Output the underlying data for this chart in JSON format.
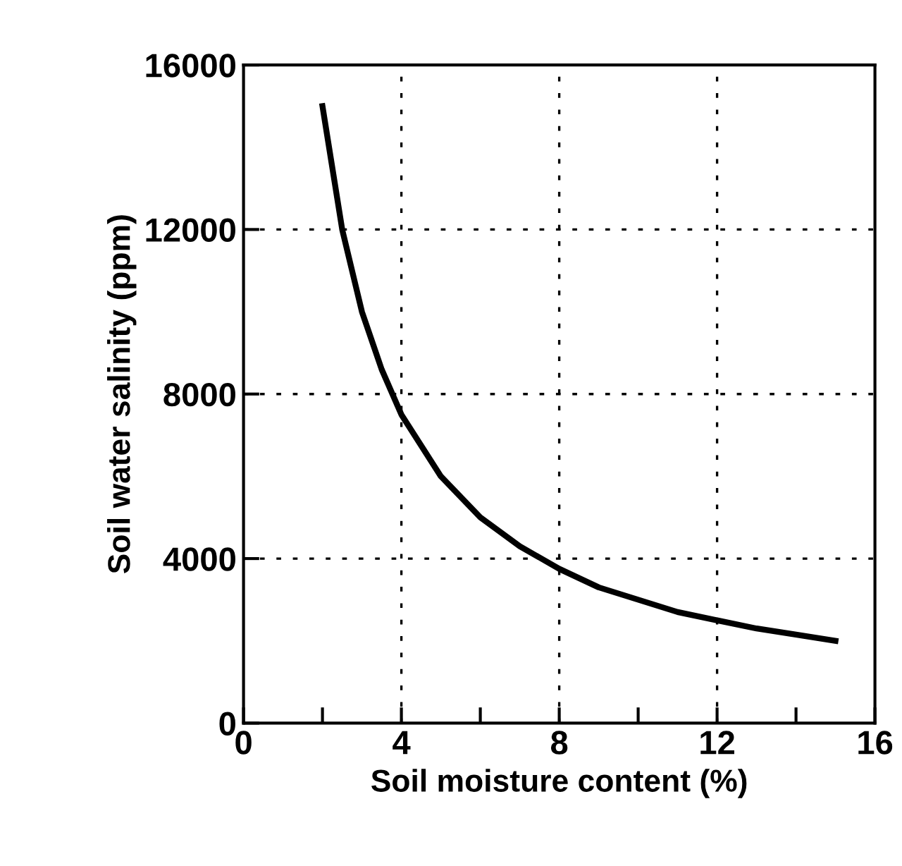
{
  "chart_data": {
    "type": "line",
    "xlabel": "Soil moisture content (%)",
    "ylabel": "Soil water salinity (ppm)",
    "x": [
      2,
      2.5,
      3,
      3.5,
      4,
      5,
      6,
      7,
      8,
      9,
      10,
      11,
      12,
      13,
      14,
      15
    ],
    "series": [
      {
        "color": "#000000",
        "values": [
          15000,
          12000,
          10000,
          8600,
          7500,
          6000,
          5000,
          4300,
          3750,
          3300,
          3000,
          2700,
          2500,
          2300,
          2150,
          2000
        ]
      }
    ],
    "xlim": [
      0,
      16
    ],
    "xticks": [
      0,
      {
        "value": 2,
        "label": null
      },
      4,
      {
        "value": 6,
        "label": null
      },
      8,
      {
        "value": 10,
        "label": null
      },
      12,
      {
        "value": 14,
        "label": null
      },
      16
    ],
    "ylim": [
      0,
      16000
    ],
    "yticks": [
      0,
      4000,
      8000,
      12000,
      16000
    ],
    "grid": true,
    "marker": "none",
    "line_style": "solid"
  }
}
